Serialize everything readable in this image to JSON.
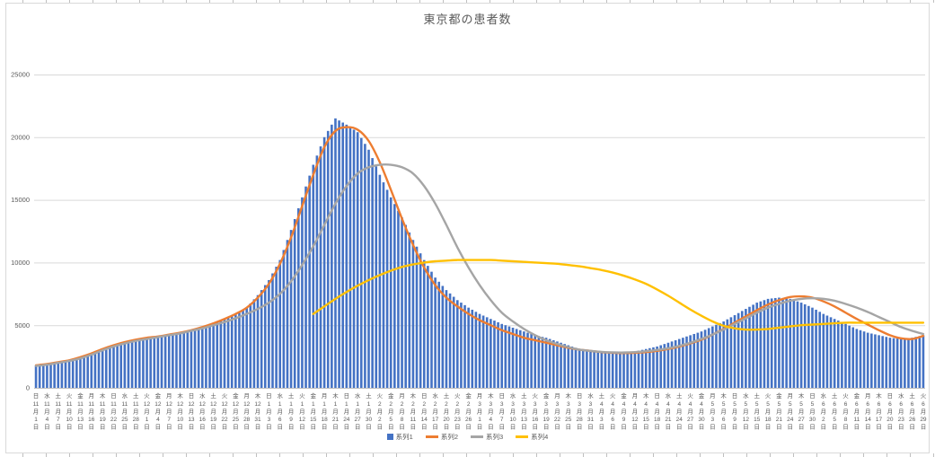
{
  "chart": {
    "title": "東京都の患者数",
    "border_color": "#D9D9D9",
    "background": "#FFFFFF"
  },
  "legend": {
    "items": [
      {
        "label": "系列1",
        "type": "bar",
        "color": "#4472C4"
      },
      {
        "label": "系列2",
        "type": "line",
        "color": "#ED7D31"
      },
      {
        "label": "系列3",
        "type": "line",
        "color": "#A5A5A5"
      },
      {
        "label": "系列4",
        "type": "line",
        "color": "#FFC000"
      }
    ]
  },
  "chart_data": {
    "type": "bar",
    "combo": "daily bars (系列1) with three smooth line series (系列2-4)",
    "title": "東京都の患者数",
    "xlabel": "",
    "ylabel": "",
    "ylim": [
      0,
      25000
    ],
    "y_ticks": [
      0,
      5000,
      10000,
      15000,
      20000,
      25000
    ],
    "grid": true,
    "legend_position": "bottom",
    "x_sampling": "axis labels and sampled values every 3 days from 11/1 to 6/29; bars are daily (interpolated between samples)",
    "month_suffix": "月",
    "day_suffix": "日",
    "x_labels": {
      "dows": [
        "日",
        "水",
        "土",
        "火",
        "金",
        "月",
        "木",
        "日",
        "水",
        "土",
        "火",
        "金",
        "月",
        "木",
        "日",
        "水",
        "土",
        "火",
        "金",
        "月",
        "木",
        "日",
        "水",
        "土",
        "火",
        "金",
        "月",
        "木",
        "日",
        "水",
        "土",
        "火",
        "金",
        "月",
        "木",
        "日",
        "水",
        "土",
        "火",
        "金",
        "月",
        "木",
        "日",
        "水",
        "土",
        "火",
        "金",
        "月",
        "木",
        "日",
        "水",
        "土",
        "火",
        "金",
        "月",
        "木",
        "日",
        "水",
        "土",
        "火",
        "金",
        "月",
        "木",
        "日",
        "水",
        "土",
        "火",
        "金",
        "月",
        "木",
        "日",
        "水",
        "土",
        "火",
        "金",
        "月",
        "木",
        "日",
        "水",
        "土",
        "火"
      ],
      "months": [
        11,
        11,
        11,
        11,
        11,
        11,
        11,
        11,
        11,
        11,
        12,
        12,
        12,
        12,
        12,
        12,
        12,
        12,
        12,
        12,
        12,
        1,
        1,
        1,
        1,
        1,
        1,
        1,
        1,
        1,
        1,
        2,
        2,
        2,
        2,
        2,
        2,
        2,
        2,
        2,
        3,
        3,
        3,
        3,
        3,
        3,
        3,
        3,
        3,
        3,
        3,
        4,
        4,
        4,
        4,
        4,
        4,
        4,
        4,
        4,
        4,
        5,
        5,
        5,
        5,
        5,
        5,
        5,
        5,
        5,
        5,
        6,
        6,
        6,
        6,
        6,
        6,
        6,
        6,
        6,
        6
      ],
      "days": [
        1,
        4,
        7,
        10,
        13,
        16,
        19,
        22,
        25,
        28,
        1,
        4,
        7,
        10,
        13,
        16,
        19,
        22,
        25,
        28,
        31,
        3,
        6,
        9,
        12,
        15,
        18,
        21,
        24,
        27,
        30,
        2,
        5,
        8,
        11,
        14,
        17,
        20,
        23,
        26,
        1,
        4,
        7,
        10,
        13,
        16,
        19,
        22,
        25,
        28,
        31,
        3,
        6,
        9,
        12,
        15,
        18,
        21,
        24,
        27,
        30,
        3,
        6,
        9,
        12,
        15,
        18,
        21,
        24,
        27,
        30,
        2,
        5,
        8,
        11,
        14,
        17,
        20,
        23,
        26,
        29
      ]
    },
    "series": [
      {
        "name": "系列1",
        "type": "bar",
        "color": "#4472C4",
        "values": [
          1800,
          1850,
          2000,
          2150,
          2400,
          2700,
          3100,
          3400,
          3600,
          3900,
          4000,
          4100,
          4200,
          4400,
          4600,
          4900,
          5200,
          5500,
          5900,
          6400,
          7400,
          8600,
          10200,
          12600,
          15200,
          17800,
          20000,
          21500,
          21000,
          20400,
          19000,
          17000,
          15200,
          13600,
          11800,
          10200,
          8800,
          7800,
          7000,
          6400,
          5900,
          5500,
          5100,
          4800,
          4500,
          4200,
          4000,
          3700,
          3400,
          3100,
          2900,
          2800,
          2750,
          2800,
          2900,
          3100,
          3300,
          3600,
          3900,
          4200,
          4500,
          4900,
          5300,
          5800,
          6300,
          6800,
          7100,
          7200,
          7100,
          6800,
          6400,
          5900,
          5500,
          5100,
          4700,
          4400,
          4200,
          4000,
          3900,
          4000,
          4200
        ]
      },
      {
        "name": "系列2",
        "type": "line",
        "color": "#ED7D31",
        "values": [
          1800,
          1900,
          2050,
          2200,
          2450,
          2750,
          3100,
          3400,
          3650,
          3850,
          4000,
          4100,
          4250,
          4400,
          4600,
          4850,
          5150,
          5500,
          5900,
          6400,
          7200,
          8300,
          9900,
          12000,
          14500,
          17000,
          19200,
          20500,
          20800,
          20600,
          19700,
          18000,
          15800,
          13500,
          11400,
          9600,
          8200,
          7200,
          6500,
          5900,
          5400,
          5000,
          4600,
          4300,
          4000,
          3800,
          3600,
          3400,
          3200,
          3050,
          2950,
          2850,
          2800,
          2780,
          2800,
          2850,
          2950,
          3100,
          3300,
          3550,
          3850,
          4250,
          4700,
          5200,
          5700,
          6200,
          6650,
          7000,
          7250,
          7300,
          7200,
          6900,
          6500,
          6000,
          5500,
          5050,
          4600,
          4200,
          3950,
          3900,
          4150
        ]
      },
      {
        "name": "系列3",
        "type": "line",
        "color": "#A5A5A5",
        "values": [
          1750,
          1850,
          2000,
          2150,
          2350,
          2650,
          3000,
          3300,
          3550,
          3750,
          3900,
          4050,
          4200,
          4350,
          4550,
          4750,
          5000,
          5250,
          5550,
          5900,
          6300,
          6800,
          7500,
          8500,
          9800,
          11300,
          13000,
          14700,
          16100,
          17100,
          17600,
          17800,
          17800,
          17600,
          17100,
          16100,
          14700,
          13000,
          11200,
          9600,
          8200,
          7000,
          6000,
          5300,
          4700,
          4200,
          3800,
          3500,
          3250,
          3050,
          2950,
          2870,
          2830,
          2820,
          2850,
          2920,
          3020,
          3160,
          3350,
          3600,
          3900,
          4250,
          4650,
          5100,
          5550,
          6000,
          6400,
          6700,
          6950,
          7100,
          7150,
          7100,
          6950,
          6700,
          6400,
          6050,
          5650,
          5250,
          4850,
          4550,
          4300
        ]
      },
      {
        "name": "系列4",
        "type": "line",
        "color": "#FFC000",
        "values": [
          null,
          null,
          null,
          null,
          null,
          null,
          null,
          null,
          null,
          null,
          null,
          null,
          null,
          null,
          null,
          null,
          null,
          null,
          null,
          null,
          null,
          null,
          null,
          null,
          null,
          5900,
          6500,
          7100,
          7650,
          8150,
          8600,
          9000,
          9350,
          9650,
          9850,
          10000,
          10100,
          10150,
          10200,
          10200,
          10200,
          10200,
          10150,
          10100,
          10050,
          10000,
          9950,
          9900,
          9800,
          9700,
          9550,
          9400,
          9200,
          8950,
          8650,
          8300,
          7850,
          7350,
          6800,
          6250,
          5750,
          5300,
          4950,
          4750,
          4650,
          4650,
          4700,
          4800,
          4900,
          5000,
          5050,
          5100,
          5150,
          5200,
          5200,
          5200,
          5200,
          5200,
          5200,
          5200,
          5200
        ]
      }
    ]
  }
}
